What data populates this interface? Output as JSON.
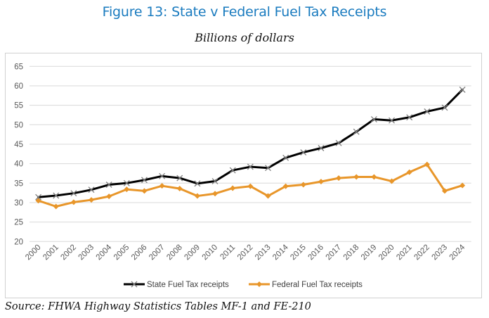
{
  "header": {
    "title": "Figure 13: State v Federal Fuel Tax Receipts",
    "subtitle": "Billions of dollars"
  },
  "footer": {
    "source": "Source: FHWA Highway Statistics Tables MF-1 and FE-210"
  },
  "colors": {
    "title": "#1a7bbf",
    "state": "#000000",
    "state_marker": "#7f7f7f",
    "federal": "#e8962a",
    "grid": "#d9d9d9"
  },
  "chart_data": {
    "type": "line",
    "title": "Figure 13: State v Federal Fuel Tax Receipts",
    "subtitle": "Billions of dollars",
    "xlabel": "",
    "ylabel": "",
    "ylim": [
      20,
      65
    ],
    "yticks": [
      20,
      25,
      30,
      35,
      40,
      45,
      50,
      55,
      60,
      65
    ],
    "grid": true,
    "legend_position": "bottom",
    "categories": [
      "2000",
      "2001",
      "2002",
      "2003",
      "2004",
      "2005",
      "2006",
      "2007",
      "2008",
      "2009",
      "2010",
      "2011",
      "2012",
      "2013",
      "2014",
      "2015",
      "2016",
      "2017",
      "2018",
      "2019",
      "2020",
      "2021",
      "2022",
      "2023",
      "2024"
    ],
    "series": [
      {
        "name": "State Fuel Tax receipts",
        "marker": "x",
        "values": [
          31.4,
          31.8,
          32.4,
          33.3,
          34.6,
          35.0,
          35.8,
          36.8,
          36.3,
          34.9,
          35.5,
          38.3,
          39.2,
          38.9,
          41.5,
          42.9,
          44.0,
          45.3,
          48.2,
          51.4,
          51.1,
          51.9,
          53.4,
          54.4,
          59.0
        ]
      },
      {
        "name": "Federal Fuel Tax receipts",
        "marker": "diamond",
        "values": [
          30.5,
          29.0,
          30.1,
          30.7,
          31.6,
          33.4,
          33.0,
          34.3,
          33.6,
          31.7,
          32.3,
          33.7,
          34.2,
          31.7,
          34.2,
          34.6,
          35.4,
          36.3,
          36.6,
          36.6,
          35.5,
          37.8,
          39.8,
          33.0,
          34.4
        ]
      }
    ]
  }
}
